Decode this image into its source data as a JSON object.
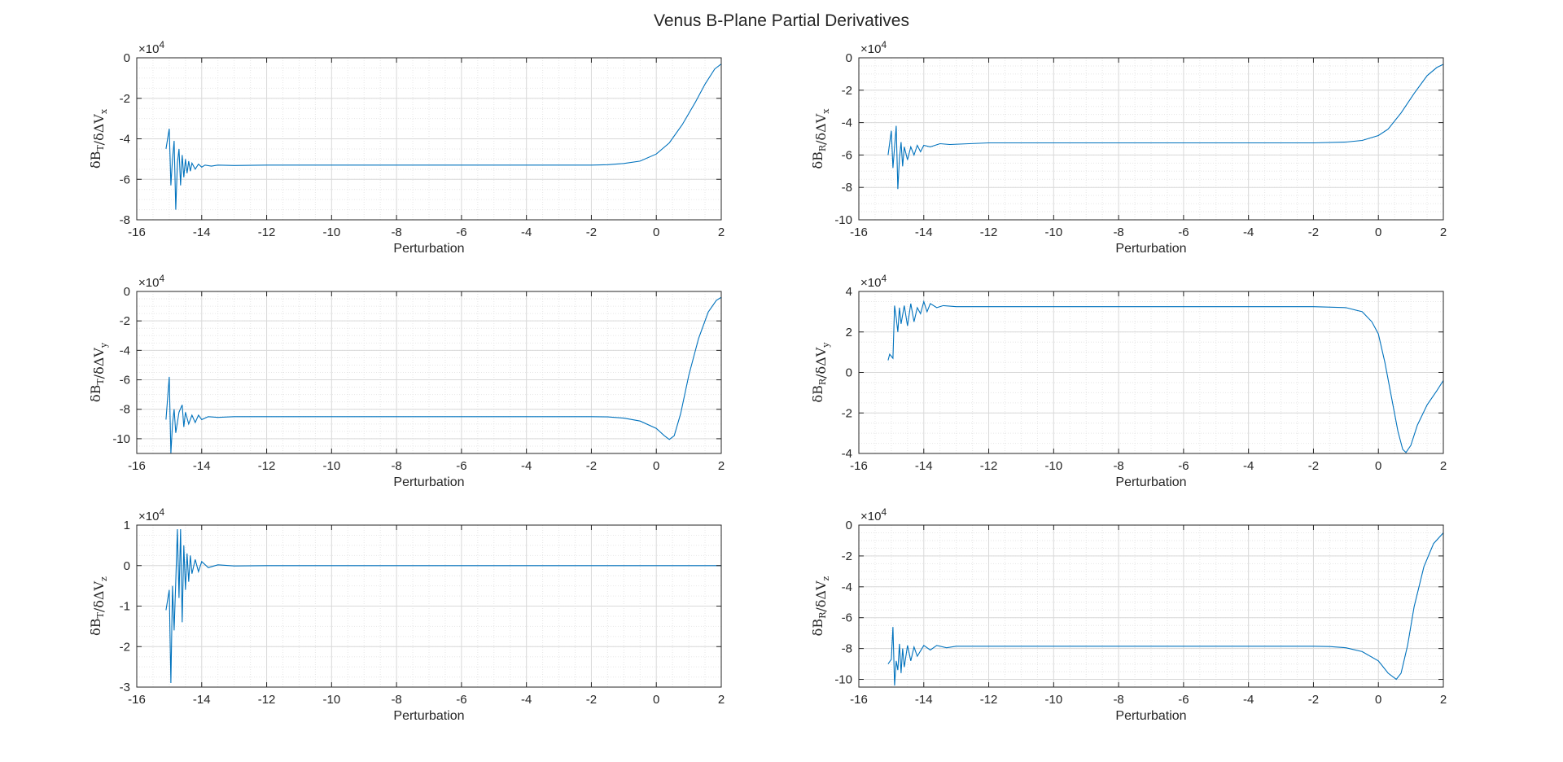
{
  "figure": {
    "title": "Venus B-Plane Partial Derivatives",
    "line_color": "#0072BD"
  },
  "chart_data": [
    {
      "type": "line",
      "xlabel": "Perturbation",
      "ylabel": "δB_T/δΔV_x",
      "ylabel_parts": {
        "num": "δB",
        "num_sub": "T",
        "den": "δΔV",
        "den_sub": "x"
      },
      "multiplier": "×10",
      "multiplier_exp": "4",
      "xlim": [
        -16,
        2
      ],
      "ylim": [
        -8,
        0
      ],
      "xticks": [
        "-16",
        "-14",
        "-12",
        "-10",
        "-8",
        "-6",
        "-4",
        "-2",
        "0",
        "2"
      ],
      "yticks": [
        "-8",
        "-6",
        "-4",
        "-2",
        "0"
      ],
      "grid": true,
      "series": [
        {
          "values": [
            [
              -15.1,
              -4.5
            ],
            [
              -15.0,
              -3.5
            ],
            [
              -14.95,
              -6.3
            ],
            [
              -14.9,
              -5.0
            ],
            [
              -14.85,
              -4.1
            ],
            [
              -14.8,
              -7.5
            ],
            [
              -14.75,
              -5.2
            ],
            [
              -14.7,
              -4.5
            ],
            [
              -14.65,
              -6.3
            ],
            [
              -14.6,
              -4.8
            ],
            [
              -14.55,
              -5.9
            ],
            [
              -14.5,
              -5.0
            ],
            [
              -14.45,
              -5.7
            ],
            [
              -14.4,
              -5.1
            ],
            [
              -14.35,
              -5.6
            ],
            [
              -14.3,
              -5.2
            ],
            [
              -14.2,
              -5.5
            ],
            [
              -14.1,
              -5.25
            ],
            [
              -14.0,
              -5.4
            ],
            [
              -13.9,
              -5.3
            ],
            [
              -13.7,
              -5.35
            ],
            [
              -13.5,
              -5.3
            ],
            [
              -13.0,
              -5.32
            ],
            [
              -12.0,
              -5.3
            ],
            [
              -8,
              -5.3
            ],
            [
              -4,
              -5.3
            ],
            [
              -2,
              -5.3
            ],
            [
              -1.5,
              -5.28
            ],
            [
              -1.0,
              -5.22
            ],
            [
              -0.5,
              -5.1
            ],
            [
              0,
              -4.75
            ],
            [
              0.4,
              -4.2
            ],
            [
              0.8,
              -3.3
            ],
            [
              1.2,
              -2.2
            ],
            [
              1.5,
              -1.3
            ],
            [
              1.8,
              -0.55
            ],
            [
              2.0,
              -0.3
            ]
          ]
        }
      ]
    },
    {
      "type": "line",
      "xlabel": "Perturbation",
      "ylabel": "δB_R/δΔV_x",
      "ylabel_parts": {
        "num": "δB",
        "num_sub": "R",
        "den": "δΔV",
        "den_sub": "x"
      },
      "multiplier": "×10",
      "multiplier_exp": "4",
      "xlim": [
        -16,
        2
      ],
      "ylim": [
        -10,
        0
      ],
      "xticks": [
        "-16",
        "-14",
        "-12",
        "-10",
        "-8",
        "-6",
        "-4",
        "-2",
        "0",
        "2"
      ],
      "yticks": [
        "-10",
        "-8",
        "-6",
        "-4",
        "-2",
        "0"
      ],
      "grid": true,
      "series": [
        {
          "values": [
            [
              -15.1,
              -6.0
            ],
            [
              -15.0,
              -4.5
            ],
            [
              -14.95,
              -6.8
            ],
            [
              -14.9,
              -5.5
            ],
            [
              -14.85,
              -4.2
            ],
            [
              -14.8,
              -8.1
            ],
            [
              -14.75,
              -6.2
            ],
            [
              -14.7,
              -5.2
            ],
            [
              -14.65,
              -6.7
            ],
            [
              -14.6,
              -5.5
            ],
            [
              -14.5,
              -6.3
            ],
            [
              -14.4,
              -5.5
            ],
            [
              -14.3,
              -6.0
            ],
            [
              -14.2,
              -5.4
            ],
            [
              -14.1,
              -5.8
            ],
            [
              -14.0,
              -5.4
            ],
            [
              -13.8,
              -5.5
            ],
            [
              -13.5,
              -5.3
            ],
            [
              -13.2,
              -5.35
            ],
            [
              -12.0,
              -5.25
            ],
            [
              -8,
              -5.25
            ],
            [
              -4,
              -5.25
            ],
            [
              -2,
              -5.25
            ],
            [
              -1,
              -5.2
            ],
            [
              -0.5,
              -5.1
            ],
            [
              0,
              -4.8
            ],
            [
              0.3,
              -4.4
            ],
            [
              0.7,
              -3.4
            ],
            [
              1.1,
              -2.2
            ],
            [
              1.5,
              -1.1
            ],
            [
              1.8,
              -0.6
            ],
            [
              2.0,
              -0.4
            ]
          ]
        }
      ]
    },
    {
      "type": "line",
      "xlabel": "Perturbation",
      "ylabel": "δB_T/δΔV_y",
      "ylabel_parts": {
        "num": "δB",
        "num_sub": "T",
        "den": "δΔV",
        "den_sub": "y"
      },
      "multiplier": "×10",
      "multiplier_exp": "4",
      "xlim": [
        -16,
        2
      ],
      "ylim": [
        -11,
        0
      ],
      "xticks": [
        "-16",
        "-14",
        "-12",
        "-10",
        "-8",
        "-6",
        "-4",
        "-2",
        "0",
        "2"
      ],
      "yticks": [
        "-10",
        "-8",
        "-6",
        "-4",
        "-2",
        "0"
      ],
      "grid": true,
      "series": [
        {
          "values": [
            [
              -15.1,
              -8.7
            ],
            [
              -15.0,
              -5.8
            ],
            [
              -14.95,
              -11.0
            ],
            [
              -14.9,
              -9.0
            ],
            [
              -14.85,
              -8.0
            ],
            [
              -14.8,
              -9.6
            ],
            [
              -14.7,
              -8.2
            ],
            [
              -14.6,
              -7.7
            ],
            [
              -14.55,
              -9.2
            ],
            [
              -14.5,
              -8.2
            ],
            [
              -14.4,
              -9.0
            ],
            [
              -14.3,
              -8.4
            ],
            [
              -14.2,
              -8.9
            ],
            [
              -14.1,
              -8.4
            ],
            [
              -14.0,
              -8.7
            ],
            [
              -13.8,
              -8.5
            ],
            [
              -13.5,
              -8.55
            ],
            [
              -13.0,
              -8.5
            ],
            [
              -8,
              -8.5
            ],
            [
              -4,
              -8.5
            ],
            [
              -2,
              -8.5
            ],
            [
              -1.5,
              -8.52
            ],
            [
              -1.0,
              -8.6
            ],
            [
              -0.5,
              -8.8
            ],
            [
              0,
              -9.3
            ],
            [
              0.25,
              -9.8
            ],
            [
              0.4,
              -10.05
            ],
            [
              0.55,
              -9.8
            ],
            [
              0.75,
              -8.3
            ],
            [
              1.0,
              -5.7
            ],
            [
              1.3,
              -3.2
            ],
            [
              1.6,
              -1.4
            ],
            [
              1.85,
              -0.6
            ],
            [
              2.0,
              -0.4
            ]
          ]
        }
      ]
    },
    {
      "type": "line",
      "xlabel": "Perturbation",
      "ylabel": "δB_R/δΔV_y",
      "ylabel_parts": {
        "num": "δB",
        "num_sub": "R",
        "den": "δΔV",
        "den_sub": "y"
      },
      "multiplier": "×10",
      "multiplier_exp": "4",
      "xlim": [
        -16,
        2
      ],
      "ylim": [
        -4,
        4
      ],
      "xticks": [
        "-16",
        "-14",
        "-12",
        "-10",
        "-8",
        "-6",
        "-4",
        "-2",
        "0",
        "2"
      ],
      "yticks": [
        "-4",
        "-2",
        "0",
        "2",
        "4"
      ],
      "grid": true,
      "series": [
        {
          "values": [
            [
              -15.1,
              0.6
            ],
            [
              -15.05,
              0.9
            ],
            [
              -14.95,
              0.7
            ],
            [
              -14.9,
              3.3
            ],
            [
              -14.85,
              2.7
            ],
            [
              -14.8,
              2.0
            ],
            [
              -14.75,
              3.2
            ],
            [
              -14.7,
              2.4
            ],
            [
              -14.6,
              3.3
            ],
            [
              -14.5,
              2.3
            ],
            [
              -14.4,
              3.4
            ],
            [
              -14.3,
              2.5
            ],
            [
              -14.2,
              3.2
            ],
            [
              -14.1,
              2.9
            ],
            [
              -14.0,
              3.5
            ],
            [
              -13.9,
              3.0
            ],
            [
              -13.8,
              3.4
            ],
            [
              -13.6,
              3.2
            ],
            [
              -13.4,
              3.3
            ],
            [
              -13.0,
              3.25
            ],
            [
              -12.0,
              3.25
            ],
            [
              -8,
              3.25
            ],
            [
              -4,
              3.25
            ],
            [
              -2,
              3.25
            ],
            [
              -1.0,
              3.2
            ],
            [
              -0.5,
              3.0
            ],
            [
              -0.2,
              2.5
            ],
            [
              0,
              1.9
            ],
            [
              0.2,
              0.5
            ],
            [
              0.4,
              -1.2
            ],
            [
              0.6,
              -2.9
            ],
            [
              0.75,
              -3.8
            ],
            [
              0.85,
              -3.95
            ],
            [
              1.0,
              -3.6
            ],
            [
              1.2,
              -2.6
            ],
            [
              1.5,
              -1.6
            ],
            [
              1.8,
              -0.9
            ],
            [
              2.0,
              -0.4
            ]
          ]
        }
      ]
    },
    {
      "type": "line",
      "xlabel": "Perturbation",
      "ylabel": "δB_T/δΔV_z",
      "ylabel_parts": {
        "num": "δB",
        "num_sub": "T",
        "den": "δΔV",
        "den_sub": "z"
      },
      "multiplier": "×10",
      "multiplier_exp": "4",
      "xlim": [
        -16,
        2
      ],
      "ylim": [
        -3,
        1
      ],
      "xticks": [
        "-16",
        "-14",
        "-12",
        "-10",
        "-8",
        "-6",
        "-4",
        "-2",
        "0",
        "2"
      ],
      "yticks": [
        "-3",
        "-2",
        "-1",
        "0",
        "1"
      ],
      "grid": true,
      "series": [
        {
          "values": [
            [
              -15.1,
              -1.1
            ],
            [
              -15.0,
              -0.6
            ],
            [
              -14.95,
              -2.9
            ],
            [
              -14.9,
              -0.5
            ],
            [
              -14.85,
              -1.6
            ],
            [
              -14.8,
              -0.4
            ],
            [
              -14.75,
              0.9
            ],
            [
              -14.7,
              -0.8
            ],
            [
              -14.65,
              0.9
            ],
            [
              -14.6,
              -1.4
            ],
            [
              -14.55,
              0.5
            ],
            [
              -14.5,
              -0.6
            ],
            [
              -14.45,
              0.3
            ],
            [
              -14.4,
              -0.4
            ],
            [
              -14.35,
              0.25
            ],
            [
              -14.3,
              -0.2
            ],
            [
              -14.2,
              0.15
            ],
            [
              -14.1,
              -0.15
            ],
            [
              -14.0,
              0.1
            ],
            [
              -13.8,
              -0.05
            ],
            [
              -13.5,
              0.02
            ],
            [
              -13.0,
              -0.01
            ],
            [
              -12.0,
              0
            ],
            [
              2.0,
              0
            ]
          ]
        }
      ]
    },
    {
      "type": "line",
      "xlabel": "Perturbation",
      "ylabel": "δB_R/δΔV_z",
      "ylabel_parts": {
        "num": "δB",
        "num_sub": "R",
        "den": "δΔV",
        "den_sub": "z"
      },
      "multiplier": "×10",
      "multiplier_exp": "4",
      "xlim": [
        -16,
        2
      ],
      "ylim": [
        -10.5,
        0
      ],
      "xticks": [
        "-16",
        "-14",
        "-12",
        "-10",
        "-8",
        "-6",
        "-4",
        "-2",
        "0",
        "2"
      ],
      "yticks": [
        "-10",
        "-8",
        "-6",
        "-4",
        "-2",
        "0"
      ],
      "grid": true,
      "series": [
        {
          "values": [
            [
              -15.1,
              -9.0
            ],
            [
              -15.0,
              -8.7
            ],
            [
              -14.95,
              -6.6
            ],
            [
              -14.9,
              -10.4
            ],
            [
              -14.85,
              -8.8
            ],
            [
              -14.8,
              -9.4
            ],
            [
              -14.75,
              -7.7
            ],
            [
              -14.7,
              -9.6
            ],
            [
              -14.65,
              -8.0
            ],
            [
              -14.6,
              -9.2
            ],
            [
              -14.5,
              -7.8
            ],
            [
              -14.4,
              -8.8
            ],
            [
              -14.3,
              -7.9
            ],
            [
              -14.2,
              -8.5
            ],
            [
              -14.0,
              -7.8
            ],
            [
              -13.8,
              -8.1
            ],
            [
              -13.6,
              -7.8
            ],
            [
              -13.3,
              -7.95
            ],
            [
              -13.0,
              -7.85
            ],
            [
              -12.0,
              -7.85
            ],
            [
              -8,
              -7.85
            ],
            [
              -4,
              -7.85
            ],
            [
              -2,
              -7.85
            ],
            [
              -1.5,
              -7.87
            ],
            [
              -1.0,
              -7.95
            ],
            [
              -0.5,
              -8.2
            ],
            [
              0,
              -8.8
            ],
            [
              0.3,
              -9.6
            ],
            [
              0.55,
              -10.0
            ],
            [
              0.7,
              -9.6
            ],
            [
              0.9,
              -7.8
            ],
            [
              1.1,
              -5.3
            ],
            [
              1.4,
              -2.7
            ],
            [
              1.7,
              -1.2
            ],
            [
              2.0,
              -0.5
            ]
          ]
        }
      ]
    }
  ]
}
